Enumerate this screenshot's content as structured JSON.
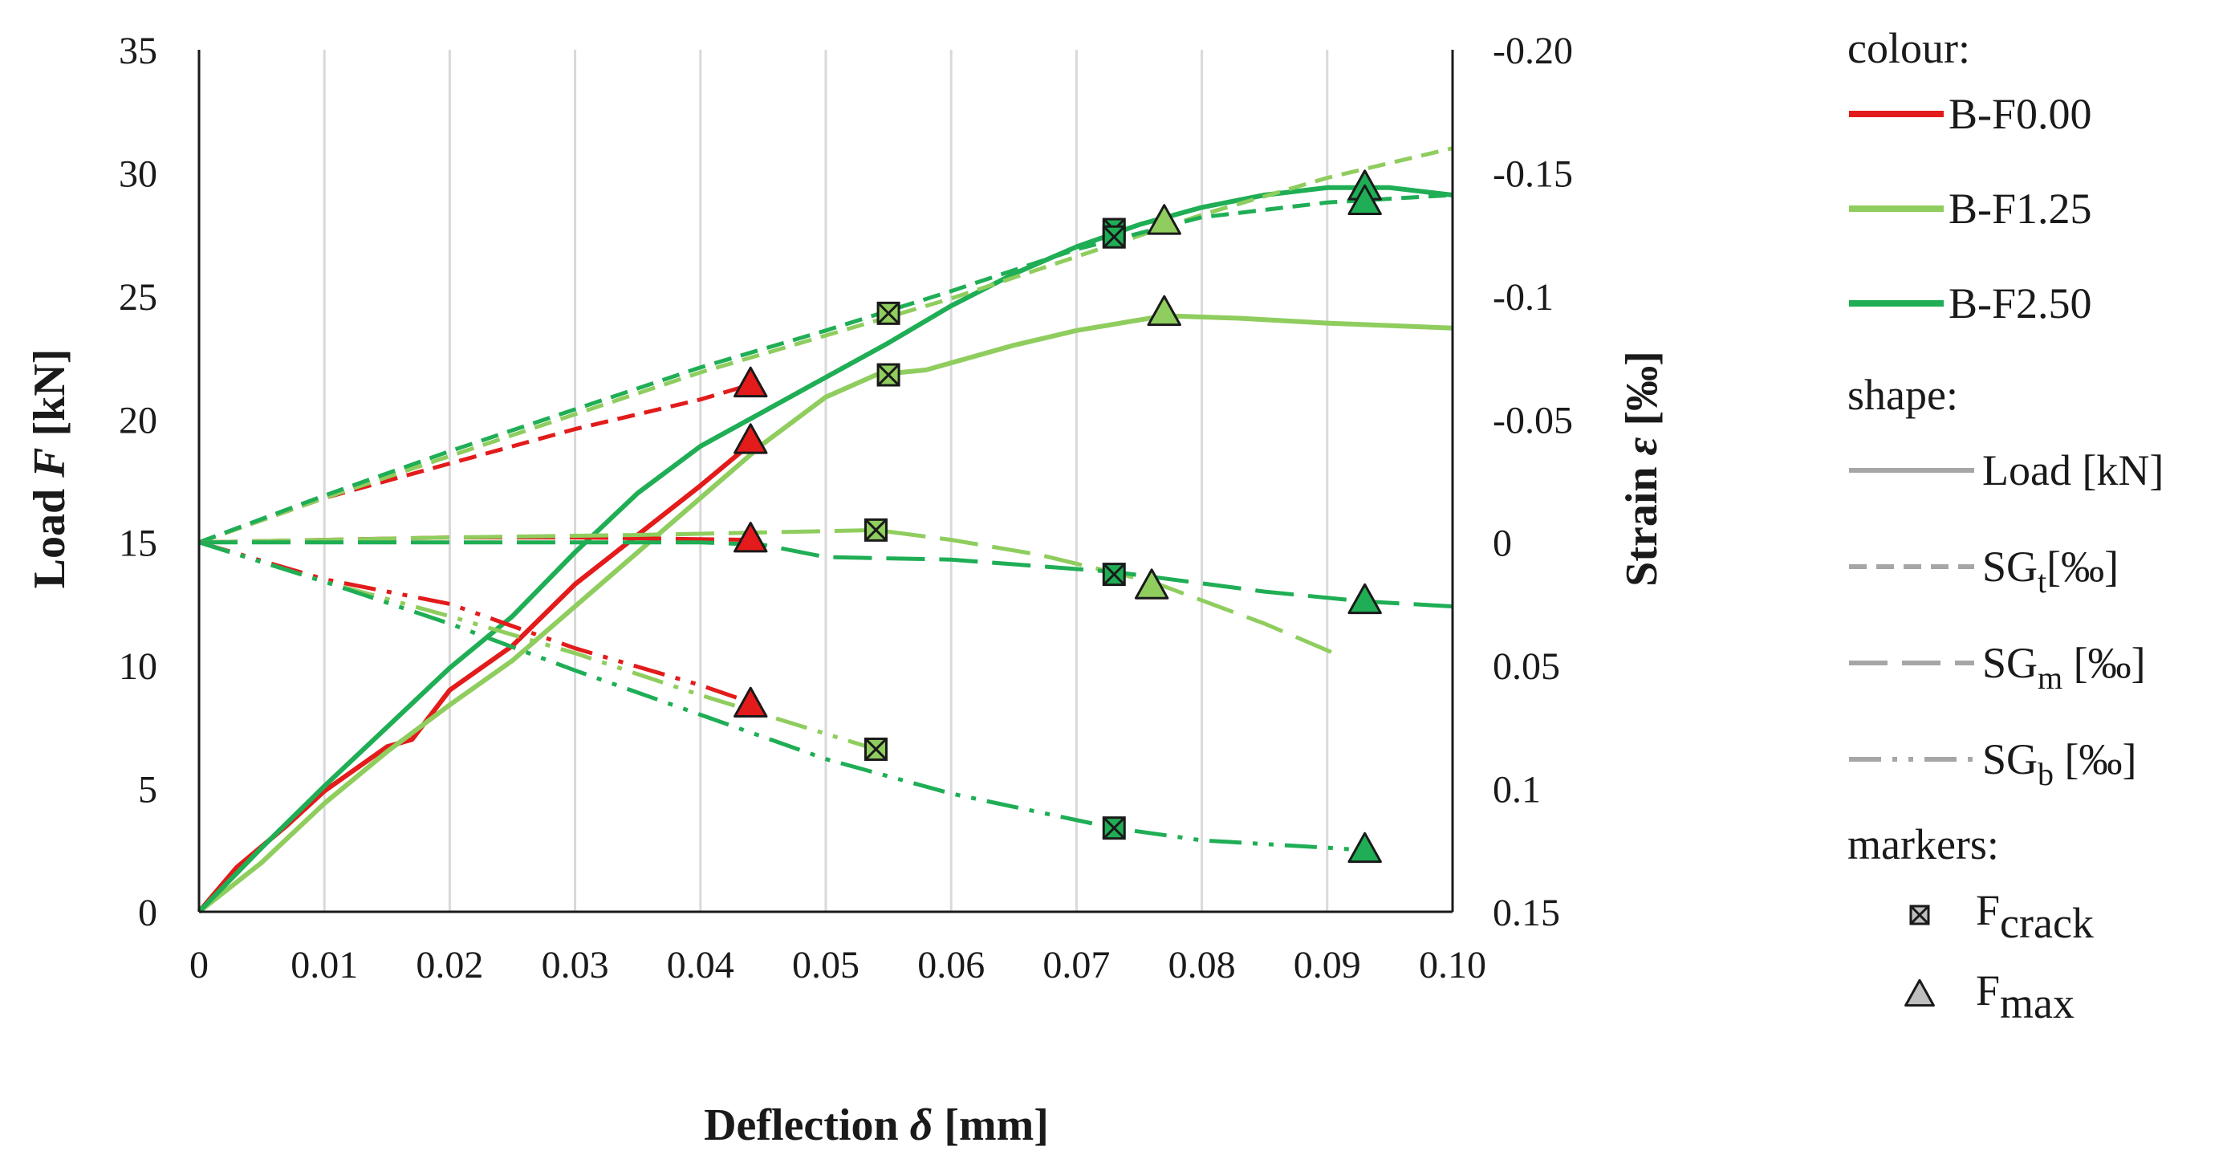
{
  "chart_data": {
    "type": "line",
    "xlabel": {
      "main": "Deflection ",
      "sym": "δ",
      "unit": " [mm]"
    },
    "ylabel_left": {
      "main": "Load ",
      "sym": "F",
      "unit": " [kN]"
    },
    "ylabel_right": {
      "main": "Strain ",
      "sym": "ε",
      "unit": " [‰]"
    },
    "xlim": [
      0,
      0.1
    ],
    "ylim_left": [
      0,
      35
    ],
    "ylim_right": [
      0.15,
      -0.2
    ],
    "x_ticks": [
      {
        "v": 0,
        "label": "0"
      },
      {
        "v": 0.01,
        "label": "0.01"
      },
      {
        "v": 0.02,
        "label": "0.02"
      },
      {
        "v": 0.03,
        "label": "0.03"
      },
      {
        "v": 0.04,
        "label": "0.04"
      },
      {
        "v": 0.05,
        "label": "0.05"
      },
      {
        "v": 0.06,
        "label": "0.06"
      },
      {
        "v": 0.07,
        "label": "0.07"
      },
      {
        "v": 0.08,
        "label": "0.08"
      },
      {
        "v": 0.09,
        "label": "0.09"
      },
      {
        "v": 0.1,
        "label": "0.10"
      }
    ],
    "y_left_ticks": [
      {
        "v": 0,
        "label": "0"
      },
      {
        "v": 5,
        "label": "5"
      },
      {
        "v": 10,
        "label": "10"
      },
      {
        "v": 15,
        "label": "15"
      },
      {
        "v": 20,
        "label": "20"
      },
      {
        "v": 25,
        "label": "25"
      },
      {
        "v": 30,
        "label": "30"
      },
      {
        "v": 35,
        "label": "35"
      }
    ],
    "y_right_ticks": [
      {
        "v": 0.15,
        "label": "0.15"
      },
      {
        "v": 0.1,
        "label": "0.1"
      },
      {
        "v": 0.05,
        "label": "0.05"
      },
      {
        "v": 0,
        "label": "0"
      },
      {
        "v": -0.05,
        "label": "-0.05"
      },
      {
        "v": -0.1,
        "label": "-0.1"
      },
      {
        "v": -0.15,
        "label": "-0.15"
      },
      {
        "v": -0.2,
        "label": "-0.20"
      }
    ],
    "grid": "vertical",
    "colors": {
      "B-F0.00": "#e31b1b",
      "B-F1.25": "#8fcd5e",
      "B-F2.50": "#1fae55"
    },
    "dash": {
      "load": "",
      "SGt": "22 12",
      "SGm": "48 18",
      "SGb": "40 14 6 14 6 14"
    },
    "series": [
      {
        "name": "B-F0.00",
        "kind": "load",
        "axis": "left",
        "points": [
          [
            0,
            0
          ],
          [
            0.003,
            1.8
          ],
          [
            0.007,
            3.5
          ],
          [
            0.01,
            4.9
          ],
          [
            0.015,
            6.7
          ],
          [
            0.017,
            7.0
          ],
          [
            0.02,
            9.0
          ],
          [
            0.025,
            10.8
          ],
          [
            0.03,
            13.3
          ],
          [
            0.035,
            15.3
          ],
          [
            0.04,
            17.3
          ],
          [
            0.044,
            19.0
          ]
        ]
      },
      {
        "name": "B-F1.25",
        "kind": "load",
        "axis": "left",
        "points": [
          [
            0,
            0
          ],
          [
            0.005,
            2.0
          ],
          [
            0.01,
            4.4
          ],
          [
            0.015,
            6.5
          ],
          [
            0.02,
            8.4
          ],
          [
            0.025,
            10.2
          ],
          [
            0.03,
            12.4
          ],
          [
            0.035,
            14.6
          ],
          [
            0.04,
            16.8
          ],
          [
            0.045,
            19.0
          ],
          [
            0.05,
            20.9
          ],
          [
            0.054,
            21.8
          ],
          [
            0.058,
            22.0
          ],
          [
            0.065,
            23.0
          ],
          [
            0.07,
            23.6
          ],
          [
            0.077,
            24.2
          ],
          [
            0.083,
            24.1
          ],
          [
            0.09,
            23.9
          ],
          [
            0.1,
            23.7
          ]
        ]
      },
      {
        "name": "B-F2.50",
        "kind": "load",
        "axis": "left",
        "points": [
          [
            0,
            0
          ],
          [
            0.005,
            2.6
          ],
          [
            0.01,
            5.1
          ],
          [
            0.015,
            7.5
          ],
          [
            0.02,
            9.9
          ],
          [
            0.025,
            12.0
          ],
          [
            0.03,
            14.6
          ],
          [
            0.035,
            17.0
          ],
          [
            0.04,
            18.9
          ],
          [
            0.045,
            20.3
          ],
          [
            0.05,
            21.7
          ],
          [
            0.055,
            23.1
          ],
          [
            0.06,
            24.6
          ],
          [
            0.065,
            25.9
          ],
          [
            0.07,
            27.0
          ],
          [
            0.075,
            27.9
          ],
          [
            0.08,
            28.6
          ],
          [
            0.085,
            29.1
          ],
          [
            0.09,
            29.4
          ],
          [
            0.095,
            29.4
          ],
          [
            0.1,
            29.1
          ]
        ]
      },
      {
        "name": "B-F0.00",
        "kind": "SGt",
        "axis": "right",
        "points": [
          [
            0,
            0
          ],
          [
            0.01,
            -0.018
          ],
          [
            0.02,
            -0.032
          ],
          [
            0.03,
            -0.046
          ],
          [
            0.04,
            -0.058
          ],
          [
            0.044,
            -0.064
          ]
        ]
      },
      {
        "name": "B-F1.25",
        "kind": "SGt",
        "axis": "right",
        "points": [
          [
            0,
            0
          ],
          [
            0.01,
            -0.018
          ],
          [
            0.02,
            -0.035
          ],
          [
            0.03,
            -0.052
          ],
          [
            0.04,
            -0.069
          ],
          [
            0.05,
            -0.084
          ],
          [
            0.06,
            -0.099
          ],
          [
            0.07,
            -0.116
          ],
          [
            0.08,
            -0.133
          ],
          [
            0.09,
            -0.148
          ],
          [
            0.1,
            -0.16
          ]
        ]
      },
      {
        "name": "B-F2.50",
        "kind": "SGt",
        "axis": "right",
        "points": [
          [
            0,
            0
          ],
          [
            0.01,
            -0.019
          ],
          [
            0.02,
            -0.037
          ],
          [
            0.03,
            -0.054
          ],
          [
            0.04,
            -0.071
          ],
          [
            0.05,
            -0.086
          ],
          [
            0.06,
            -0.102
          ],
          [
            0.07,
            -0.119
          ],
          [
            0.08,
            -0.132
          ],
          [
            0.09,
            -0.138
          ],
          [
            0.1,
            -0.141
          ]
        ]
      },
      {
        "name": "B-F0.00",
        "kind": "SGm",
        "axis": "right",
        "points": [
          [
            0,
            0
          ],
          [
            0.01,
            -0.001
          ],
          [
            0.02,
            -0.002
          ],
          [
            0.03,
            -0.002
          ],
          [
            0.044,
            -0.001
          ]
        ]
      },
      {
        "name": "B-F1.25",
        "kind": "SGm",
        "axis": "right",
        "points": [
          [
            0,
            0
          ],
          [
            0.02,
            -0.002
          ],
          [
            0.035,
            -0.003
          ],
          [
            0.045,
            -0.004
          ],
          [
            0.054,
            -0.005
          ],
          [
            0.06,
            -0.001
          ],
          [
            0.067,
            0.005
          ],
          [
            0.076,
            0.016
          ],
          [
            0.085,
            0.033
          ],
          [
            0.091,
            0.046
          ]
        ]
      },
      {
        "name": "B-F2.50",
        "kind": "SGm",
        "axis": "right",
        "points": [
          [
            0,
            0
          ],
          [
            0.02,
            0
          ],
          [
            0.03,
            0
          ],
          [
            0.04,
            0
          ],
          [
            0.045,
            0.001
          ],
          [
            0.05,
            0.006
          ],
          [
            0.06,
            0.007
          ],
          [
            0.073,
            0.012
          ],
          [
            0.085,
            0.02
          ],
          [
            0.093,
            0.024
          ],
          [
            0.1,
            0.026
          ]
        ]
      },
      {
        "name": "B-F0.00",
        "kind": "SGb",
        "axis": "right",
        "points": [
          [
            0,
            0
          ],
          [
            0.01,
            0.015
          ],
          [
            0.02,
            0.025
          ],
          [
            0.03,
            0.043
          ],
          [
            0.04,
            0.058
          ],
          [
            0.044,
            0.065
          ]
        ]
      },
      {
        "name": "B-F1.25",
        "kind": "SGb",
        "axis": "right",
        "points": [
          [
            0,
            0
          ],
          [
            0.01,
            0.016
          ],
          [
            0.02,
            0.03
          ],
          [
            0.03,
            0.045
          ],
          [
            0.04,
            0.062
          ],
          [
            0.054,
            0.084
          ]
        ]
      },
      {
        "name": "B-F2.50",
        "kind": "SGb",
        "axis": "right",
        "points": [
          [
            0,
            0
          ],
          [
            0.01,
            0.016
          ],
          [
            0.02,
            0.033
          ],
          [
            0.03,
            0.052
          ],
          [
            0.04,
            0.07
          ],
          [
            0.05,
            0.088
          ],
          [
            0.06,
            0.102
          ],
          [
            0.073,
            0.116
          ],
          [
            0.08,
            0.121
          ],
          [
            0.09,
            0.124
          ],
          [
            0.093,
            0.125
          ]
        ]
      }
    ],
    "markers": [
      {
        "series": "B-F0.00",
        "type": "max",
        "x": 0.044,
        "y": 19.1,
        "axis": "left"
      },
      {
        "series": "B-F0.00",
        "type": "max",
        "x": 0.044,
        "y": -0.064,
        "axis": "right"
      },
      {
        "series": "B-F0.00",
        "type": "max",
        "x": 0.044,
        "y": -0.001,
        "axis": "right"
      },
      {
        "series": "B-F0.00",
        "type": "max",
        "x": 0.044,
        "y": 0.066,
        "axis": "right"
      },
      {
        "series": "B-F1.25",
        "type": "crack",
        "x": 0.055,
        "y": 21.8,
        "axis": "left"
      },
      {
        "series": "B-F1.25",
        "type": "crack",
        "x": 0.055,
        "y": -0.093,
        "axis": "right"
      },
      {
        "series": "B-F1.25",
        "type": "crack",
        "x": 0.054,
        "y": -0.005,
        "axis": "right"
      },
      {
        "series": "B-F1.25",
        "type": "crack",
        "x": 0.054,
        "y": 0.084,
        "axis": "right"
      },
      {
        "series": "B-F1.25",
        "type": "max",
        "x": 0.077,
        "y": 24.3,
        "axis": "left"
      },
      {
        "series": "B-F1.25",
        "type": "max",
        "x": 0.077,
        "y": -0.13,
        "axis": "right"
      },
      {
        "series": "B-F1.25",
        "type": "max",
        "x": 0.076,
        "y": 0.018,
        "axis": "right"
      },
      {
        "series": "B-F2.50",
        "type": "crack",
        "x": 0.073,
        "y": 27.7,
        "axis": "left"
      },
      {
        "series": "B-F2.50",
        "type": "crack",
        "x": 0.073,
        "y": -0.124,
        "axis": "right"
      },
      {
        "series": "B-F2.50",
        "type": "crack",
        "x": 0.073,
        "y": 0.013,
        "axis": "right"
      },
      {
        "series": "B-F2.50",
        "type": "crack",
        "x": 0.073,
        "y": 0.116,
        "axis": "right"
      },
      {
        "series": "B-F2.50",
        "type": "max",
        "x": 0.093,
        "y": 29.4,
        "axis": "left"
      },
      {
        "series": "B-F2.50",
        "type": "max",
        "x": 0.093,
        "y": -0.138,
        "axis": "right"
      },
      {
        "series": "B-F2.50",
        "type": "max",
        "x": 0.093,
        "y": 0.024,
        "axis": "right"
      },
      {
        "series": "B-F2.50",
        "type": "max",
        "x": 0.093,
        "y": 0.125,
        "axis": "right"
      }
    ],
    "legend": {
      "position": "right",
      "colour_heading": "colour:",
      "colour_items": [
        {
          "label": "B-F0.00",
          "color": "#e31b1b"
        },
        {
          "label": "B-F1.25",
          "color": "#8fcd5e"
        },
        {
          "label": "B-F2.50",
          "color": "#1fae55"
        }
      ],
      "shape_heading": "shape:",
      "shape_items": [
        {
          "kind": "load",
          "label": "Load [kN]"
        },
        {
          "kind": "SGt",
          "label": "SG",
          "sub": "t",
          "suffix": "[‰]"
        },
        {
          "kind": "SGm",
          "label": "SG",
          "sub": "m",
          "suffix": " [‰]"
        },
        {
          "kind": "SGb",
          "label": "SG",
          "sub": "b",
          "suffix": " [‰]"
        }
      ],
      "markers_heading": "markers:",
      "marker_items": [
        {
          "type": "crack",
          "label": "F",
          "sub": "crack"
        },
        {
          "type": "max",
          "label": "F",
          "sub": "max"
        }
      ]
    }
  }
}
